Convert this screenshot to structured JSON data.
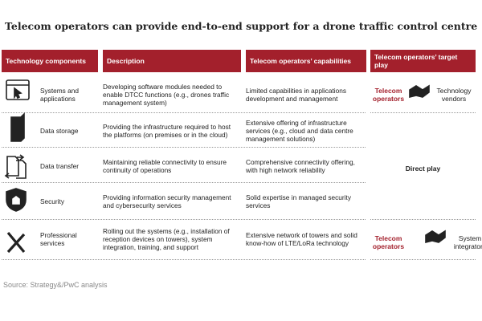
{
  "title": "Telecom operators can provide end-to-end support for a drone traffic control centre",
  "table": {
    "headers": [
      "Technology components",
      "Description",
      "Telecom operators’ capabilities",
      "Telecom operators’ target play"
    ],
    "rows": [
      [
        "Systems and applications",
        "Developing software modules needed to enable DTCC functions (e.g., drones traffic management system)",
        "Limited capabilities in applications development and management"
      ],
      [
        "Data storage",
        "Providing the infrastructure required to host the platforms (on premises or in the cloud)",
        "Extensive offering of infrastructure services (e.g., cloud and data centre management solutions)"
      ],
      [
        "Data transfer",
        "Maintaining reliable connectivity to ensure continuity of operations",
        "Comprehensive connectivity offering, with high network reliability"
      ],
      [
        "Security",
        "Providing information security management and cybersecurity services",
        "Solid expertise in managed security services"
      ],
      [
        "Professional services",
        "Rolling out the systems (e.g., installation of reception devices on towers), system integration, training, and support",
        "Extensive network of towers and solid know-how of LTE/LoRa technology"
      ]
    ],
    "target_play": {
      "first": {
        "operator": "Telecom operators",
        "partner": "Technology vendors"
      },
      "middle": "Direct play",
      "last": {
        "operator": "Telecom operators",
        "partner": "System integrators"
      }
    }
  },
  "source": "Source: Strategy&/PwC analysis"
}
